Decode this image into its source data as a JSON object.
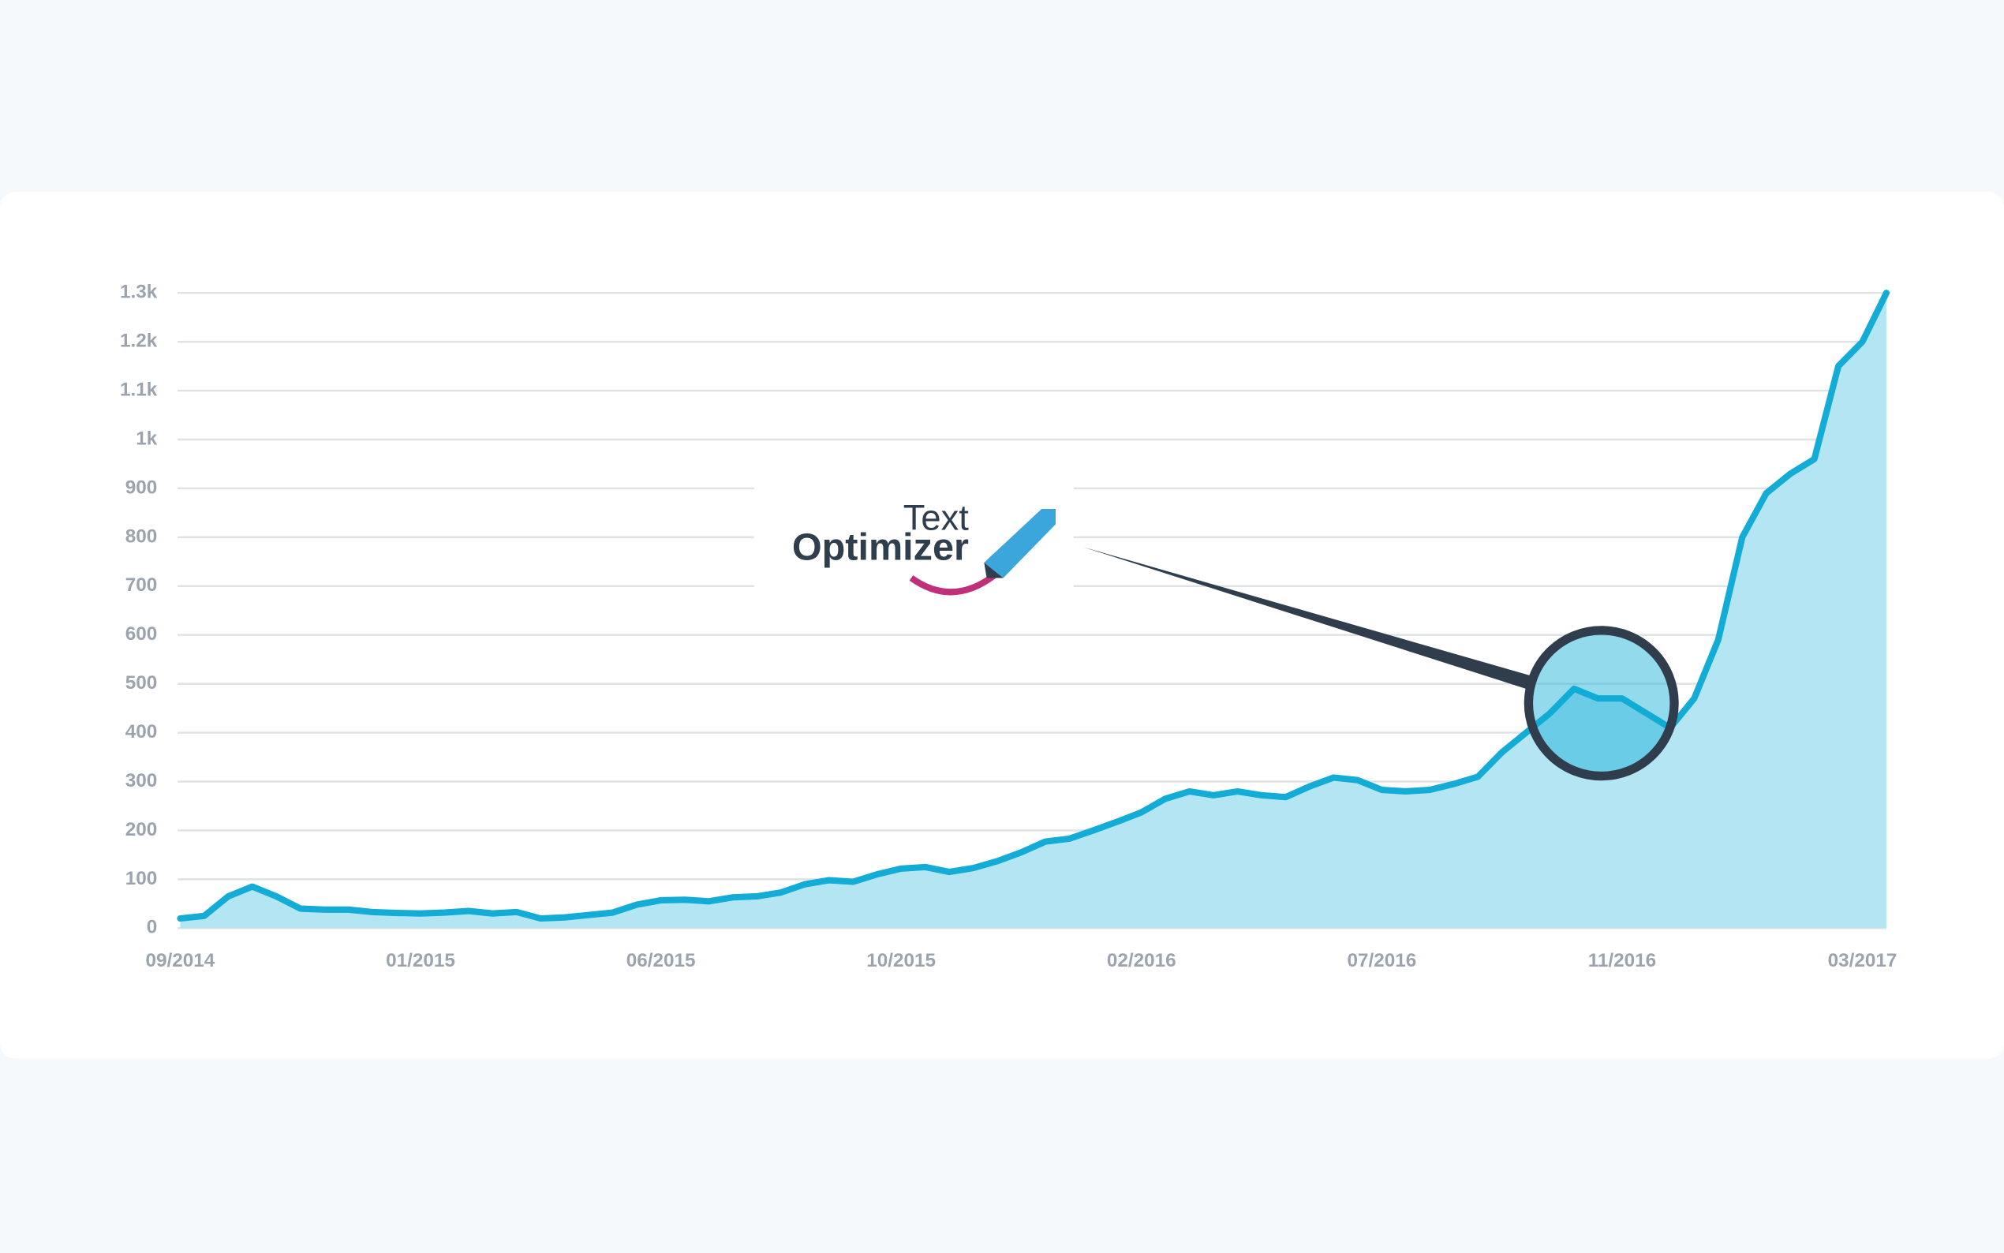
{
  "chart_data": {
    "type": "area",
    "categories": [
      "09/2014",
      null,
      null,
      null,
      null,
      null,
      null,
      null,
      null,
      null,
      "01/2015",
      null,
      null,
      null,
      null,
      null,
      null,
      null,
      null,
      null,
      "06/2015",
      null,
      null,
      null,
      null,
      null,
      null,
      null,
      null,
      null,
      "10/2015",
      null,
      null,
      null,
      null,
      null,
      null,
      null,
      null,
      null,
      "02/2016",
      null,
      null,
      null,
      null,
      null,
      null,
      null,
      null,
      null,
      "07/2016",
      null,
      null,
      null,
      null,
      null,
      null,
      null,
      null,
      null,
      "11/2016",
      null,
      null,
      null,
      null,
      null,
      null,
      null,
      null,
      null,
      "03/2017",
      null
    ],
    "values": [
      20,
      25,
      65,
      85,
      65,
      40,
      38,
      38,
      33,
      31,
      30,
      32,
      35,
      30,
      33,
      20,
      22,
      27,
      32,
      48,
      57,
      58,
      55,
      63,
      65,
      73,
      90,
      98,
      95,
      110,
      122,
      125,
      115,
      123,
      137,
      155,
      177,
      183,
      200,
      218,
      237,
      265,
      280,
      272,
      280,
      272,
      268,
      290,
      308,
      303,
      283,
      280,
      283,
      295,
      310,
      360,
      400,
      440,
      490,
      470,
      470,
      440,
      410,
      470,
      590,
      800,
      890,
      930,
      960,
      1150,
      1200,
      1300
    ],
    "color": "#12acd6",
    "fill_color": "#b3e5f2",
    "ylim": [
      0,
      1300
    ],
    "yticks": [
      0,
      100,
      200,
      300,
      400,
      500,
      600,
      700,
      800,
      900,
      {
        "value": 1000,
        "label": "1k"
      },
      {
        "value": 1100,
        "label": "1.1k"
      },
      {
        "value": 1200,
        "label": "1.2k"
      },
      {
        "value": 1300,
        "label": "1.3k"
      }
    ],
    "grid": true
  },
  "logo": {
    "line1": "Text",
    "line2": "Optimizer"
  }
}
